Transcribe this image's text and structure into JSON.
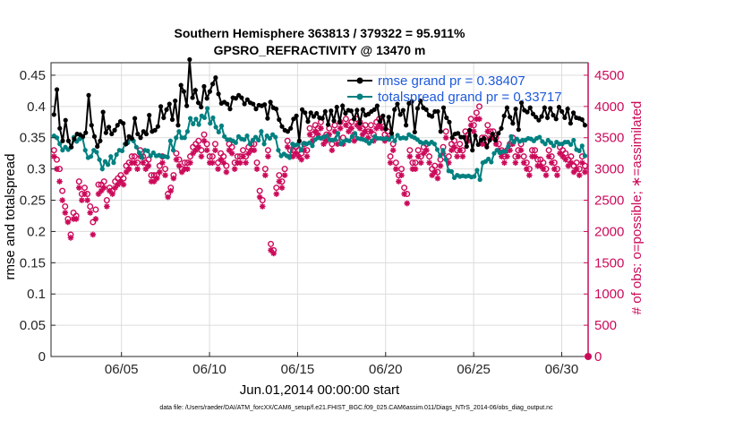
{
  "colors": {
    "rmse": "#000000",
    "spread": "#008080",
    "obs": "#cc0a5a",
    "legend_text": "#1e5adc",
    "grid": "#dcdcdc"
  },
  "chart_data": {
    "type": "line",
    "title_line1": "Southern Hemisphere 363813 / 379322 = 95.911%",
    "title_line2": "GPSRO_REFRACTIVITY @ 13470 m",
    "xlabel": "Jun.01,2014 00:00:00 start",
    "ylabel_left": "rmse and totalspread",
    "ylabel_right": "# of obs: o=possible; ∗=assimilated",
    "footnote": "data file: /Users/raeder/DAI/ATM_forcXX/CAM6_setup/f.e21.FHIST_BGC.f09_025.CAM6assim.011/Diags_NTrS_2014-06/obs_diag_output.nc",
    "x_range_days": [
      1,
      31.5
    ],
    "ylim_left": [
      0,
      0.47
    ],
    "ylim_right": [
      0,
      4700
    ],
    "yticks_left": [
      "0",
      "0.05",
      "0.1",
      "0.15",
      "0.2",
      "0.25",
      "0.3",
      "0.35",
      "0.4",
      "0.45"
    ],
    "yticks_right": [
      "0",
      "500",
      "1000",
      "1500",
      "2000",
      "2500",
      "3000",
      "3500",
      "4000",
      "4500"
    ],
    "xticks": [
      {
        "label": "06/05",
        "day": 5
      },
      {
        "label": "06/10",
        "day": 10
      },
      {
        "label": "06/15",
        "day": 15
      },
      {
        "label": "06/20",
        "day": 20
      },
      {
        "label": "06/25",
        "day": 25
      },
      {
        "label": "06/30",
        "day": 30
      }
    ],
    "grid": true,
    "legend_position": "top-right",
    "series": [
      {
        "name": "rmse grand pr = 0.38407",
        "axis": "left",
        "marker": "filled-circle",
        "values": [
          0.387,
          0.427,
          0.365,
          0.345,
          0.378,
          0.345,
          0.335,
          0.348,
          0.356,
          0.355,
          0.352,
          0.358,
          0.418,
          0.37,
          0.352,
          0.336,
          0.345,
          0.391,
          0.358,
          0.367,
          0.356,
          0.362,
          0.37,
          0.376,
          0.373,
          0.34,
          0.352,
          0.349,
          0.381,
          0.356,
          0.35,
          0.36,
          0.356,
          0.386,
          0.36,
          0.362,
          0.368,
          0.4,
          0.382,
          0.395,
          0.404,
          0.379,
          0.409,
          0.37,
          0.434,
          0.424,
          0.401,
          0.475,
          0.414,
          0.426,
          0.406,
          0.399,
          0.432,
          0.413,
          0.424,
          0.436,
          0.446,
          0.42,
          0.405,
          0.407,
          0.404,
          0.396,
          0.414,
          0.413,
          0.418,
          0.414,
          0.404,
          0.411,
          0.406,
          0.404,
          0.396,
          0.402,
          0.401,
          0.403,
          0.381,
          0.407,
          0.398,
          0.396,
          0.379,
          0.368,
          0.362,
          0.36,
          0.365,
          0.38,
          0.385,
          0.345,
          0.395,
          0.39,
          0.376,
          0.39,
          0.384,
          0.389,
          0.382,
          0.381,
          0.392,
          0.371,
          0.393,
          0.377,
          0.399,
          0.375,
          0.401,
          0.389,
          0.394,
          0.393,
          0.38,
          0.394,
          0.373,
          0.395,
          0.386,
          0.388,
          0.392,
          0.395,
          0.401,
          0.376,
          0.385,
          0.364,
          0.383,
          0.357,
          0.395,
          0.404,
          0.387,
          0.394,
          0.37,
          0.405,
          0.408,
          0.359,
          0.397,
          0.409,
          0.398,
          0.395,
          0.386,
          0.384,
          0.392,
          0.392,
          0.36,
          0.398,
          0.382,
          0.375,
          0.35,
          0.356,
          0.357,
          0.351,
          0.351,
          0.336,
          0.362,
          0.33,
          0.353,
          0.339,
          0.346,
          0.349,
          0.335,
          0.346,
          0.356,
          0.346,
          0.357,
          0.365,
          0.385,
          0.398,
          0.383,
          0.373,
          0.396,
          0.363,
          0.406,
          0.394,
          0.391,
          0.398,
          0.388,
          0.383,
          0.378,
          0.384,
          0.398,
          0.382,
          0.397,
          0.386,
          0.38,
          0.399,
          0.392,
          0.382,
          0.396,
          0.373,
          0.39,
          0.382,
          0.381,
          0.379,
          0.37
        ]
      },
      {
        "name": "totalspread grand pr = 0.33717",
        "axis": "left",
        "marker": "filled-circle",
        "values": [
          0.353,
          0.35,
          0.34,
          0.33,
          0.335,
          0.331,
          0.335,
          0.351,
          0.344,
          0.348,
          0.35,
          0.33,
          0.318,
          0.32,
          0.33,
          0.327,
          0.315,
          0.3,
          0.312,
          0.307,
          0.32,
          0.31,
          0.323,
          0.33,
          0.329,
          0.34,
          0.342,
          0.348,
          0.345,
          0.335,
          0.326,
          0.318,
          0.33,
          0.329,
          0.321,
          0.326,
          0.321,
          0.322,
          0.32,
          0.32,
          0.319,
          0.345,
          0.33,
          0.35,
          0.36,
          0.35,
          0.35,
          0.36,
          0.381,
          0.372,
          0.38,
          0.371,
          0.385,
          0.382,
          0.397,
          0.373,
          0.382,
          0.367,
          0.359,
          0.369,
          0.352,
          0.347,
          0.347,
          0.345,
          0.342,
          0.352,
          0.348,
          0.347,
          0.353,
          0.34,
          0.346,
          0.351,
          0.346,
          0.36,
          0.34,
          0.353,
          0.349,
          0.355,
          0.351,
          0.33,
          0.321,
          0.324,
          0.321,
          0.318,
          0.34,
          0.338,
          0.34,
          0.33,
          0.341,
          0.34,
          0.342,
          0.337,
          0.347,
          0.35,
          0.349,
          0.351,
          0.353,
          0.347,
          0.346,
          0.347,
          0.357,
          0.34,
          0.344,
          0.346,
          0.345,
          0.352,
          0.357,
          0.349,
          0.348,
          0.347,
          0.345,
          0.341,
          0.345,
          0.352,
          0.349,
          0.349,
          0.348,
          0.349,
          0.347,
          0.352,
          0.345,
          0.354,
          0.349,
          0.35,
          0.349,
          0.355,
          0.352,
          0.35,
          0.347,
          0.343,
          0.341,
          0.343,
          0.34,
          0.343,
          0.34,
          0.331,
          0.321,
          0.33,
          0.315,
          0.297,
          0.296,
          0.286,
          0.29,
          0.288,
          0.289,
          0.288,
          0.289,
          0.287,
          0.288,
          0.298,
          0.283,
          0.31,
          0.312,
          0.316,
          0.311,
          0.325,
          0.33,
          0.326,
          0.328,
          0.328,
          0.336,
          0.352,
          0.343,
          0.348,
          0.344,
          0.346,
          0.346,
          0.349,
          0.348,
          0.345,
          0.349,
          0.351,
          0.344,
          0.34,
          0.346,
          0.342,
          0.337,
          0.343,
          0.34,
          0.34,
          0.343,
          0.343,
          0.339,
          0.346,
          0.331,
          0.329,
          0.337,
          0.321
        ]
      },
      {
        "name": "possible",
        "axis": "right",
        "marker": "open-circle",
        "values": [
          3300,
          3150,
          3000,
          2650,
          2400,
          2200,
          1950,
          2300,
          2250,
          2800,
          2600,
          2700,
          2600,
          2400,
          2150,
          2350,
          2750,
          2750,
          2800,
          2500,
          2700,
          2650,
          2800,
          2850,
          2900,
          2850,
          3050,
          3100,
          3200,
          3200,
          3100,
          3300,
          3200,
          3100,
          3150,
          2900,
          2900,
          2900,
          3050,
          3200,
          3000,
          2600,
          2700,
          2900,
          3250,
          3150,
          3000,
          3100,
          3100,
          3200,
          3350,
          3400,
          3450,
          3300,
          3550,
          3400,
          3200,
          3200,
          3400,
          3100,
          3250,
          3200,
          3050,
          3400,
          3350,
          3100,
          3200,
          3200,
          3300,
          3200,
          3350,
          3400,
          3400,
          3100,
          2650,
          2500,
          3000,
          3300,
          1800,
          1700,
          2700,
          2900,
          2800,
          3000,
          3450,
          3300,
          3300,
          3350,
          3300,
          3250,
          3400,
          3300,
          3650,
          3550,
          3700,
          3650,
          3750,
          3500,
          3550,
          3650,
          3400,
          3700,
          3500,
          3750,
          3500,
          3800,
          3700,
          3750,
          3550,
          3800,
          3750,
          3650,
          3700,
          3600,
          3700,
          3550,
          3750,
          3800,
          3750,
          3550,
          3600,
          3200,
          3400,
          3100,
          2900,
          3000,
          2700,
          2600,
          3300,
          3100,
          3100,
          3300,
          3200,
          3350,
          3400,
          3200,
          3000,
          3050,
          2950,
          3150,
          3350,
          3600,
          3200,
          3400,
          3450,
          3300,
          3400,
          3300,
          3600,
          3550,
          3800,
          3700,
          3900,
          4000,
          3500,
          3500,
          3700,
          3600,
          3600,
          3500,
          3400,
          3300,
          3200,
          3300,
          3400,
          3500,
          3200,
          3300,
          3400,
          3200,
          3100,
          3000,
          3300,
          3300,
          3150,
          3150,
          3100,
          3000,
          3300,
          3200,
          3100,
          3000,
          3350,
          3300,
          3250,
          3150,
          3200,
          3050,
          3100,
          3000,
          3200,
          3050
        ]
      },
      {
        "name": "assimilated",
        "axis": "right",
        "marker": "star",
        "values": [
          3200,
          3000,
          2800,
          2500,
          2300,
          2150,
          1900,
          2200,
          2200,
          2700,
          2500,
          2600,
          2500,
          2300,
          1950,
          2200,
          2600,
          2650,
          2700,
          2400,
          2650,
          2600,
          2700,
          2750,
          2800,
          2750,
          2950,
          3000,
          3100,
          3100,
          3000,
          3200,
          3100,
          3000,
          3050,
          2800,
          2800,
          2850,
          2950,
          3100,
          2900,
          2550,
          2650,
          2850,
          3150,
          3050,
          2950,
          3000,
          3000,
          3100,
          3250,
          3300,
          3350,
          3200,
          3450,
          3300,
          3100,
          3100,
          3300,
          3000,
          3150,
          3100,
          2950,
          3300,
          3250,
          3000,
          3100,
          3100,
          3200,
          3100,
          3250,
          3300,
          3300,
          3000,
          2550,
          2400,
          2900,
          3200,
          1700,
          1650,
          2600,
          2800,
          2700,
          2900,
          3350,
          3200,
          3200,
          3250,
          3200,
          3150,
          3300,
          3200,
          3550,
          3450,
          3600,
          3550,
          3650,
          3400,
          3450,
          3550,
          3300,
          3600,
          3400,
          3650,
          3400,
          3700,
          3600,
          3650,
          3450,
          3700,
          3650,
          3550,
          3600,
          3500,
          3600,
          3450,
          3650,
          3700,
          3650,
          3450,
          3500,
          3100,
          3300,
          3000,
          2800,
          2900,
          2600,
          2450,
          3200,
          3000,
          3000,
          3200,
          3100,
          3250,
          3300,
          3100,
          2900,
          2950,
          2850,
          3050,
          3250,
          3500,
          3100,
          3300,
          3350,
          3200,
          3300,
          3200,
          3500,
          3450,
          3700,
          3600,
          3800,
          3800,
          3400,
          3400,
          3600,
          3500,
          3500,
          3400,
          3300,
          3200,
          3100,
          3200,
          3300,
          3400,
          3100,
          3200,
          3300,
          3100,
          3000,
          2900,
          3200,
          3200,
          3050,
          3050,
          3000,
          2900,
          3200,
          3100,
          3000,
          2900,
          3250,
          3200,
          3150,
          3050,
          3100,
          2950,
          3000,
          2900,
          3100,
          2950
        ]
      }
    ]
  }
}
